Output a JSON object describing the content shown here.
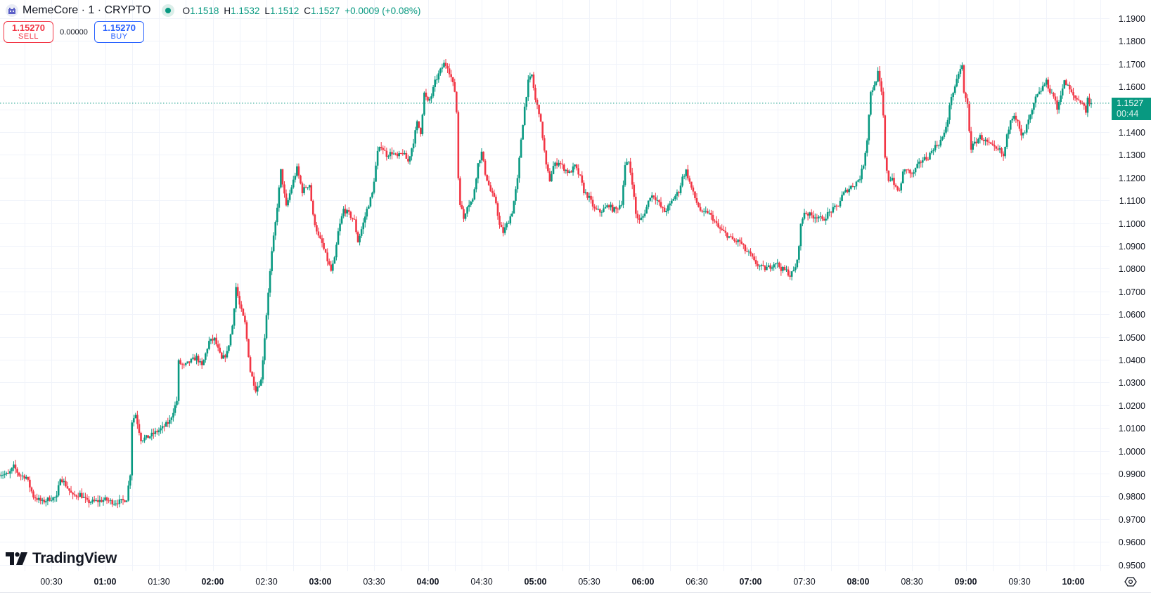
{
  "header": {
    "symbol_title": "MemeCore · 1 · CRYPTO",
    "symbol_icon": "building-icon",
    "market_status": "open",
    "ohlc": {
      "o_label": "O",
      "o_value": "1.1518",
      "h_label": "H",
      "h_value": "1.1532",
      "l_label": "L",
      "l_value": "1.1512",
      "c_label": "C",
      "c_value": "1.1527",
      "change": "+0.0009 (+0.08%)"
    }
  },
  "trade": {
    "sell_price": "1.15270",
    "sell_label": "SELL",
    "spread": "0.00000",
    "buy_price": "1.15270",
    "buy_label": "BUY"
  },
  "price_tag": {
    "price": "1.1527",
    "countdown": "00:44"
  },
  "branding": {
    "logo_text": "TradingView"
  },
  "colors": {
    "up": "#089981",
    "down": "#f23645",
    "grid": "#f0f3fa",
    "sell": "#f23645",
    "buy": "#2962ff"
  },
  "chart_data": {
    "type": "candlestick",
    "title": "MemeCore · 1 · CRYPTO",
    "interval_minutes": 1,
    "xlabel": "",
    "ylabel": "",
    "ylim": [
      0.95,
      1.19
    ],
    "y_ticks": [
      "1.1900",
      "1.1800",
      "1.1700",
      "1.1600",
      "1.1500",
      "1.1400",
      "1.1300",
      "1.1200",
      "1.1100",
      "1.1000",
      "1.0900",
      "1.0800",
      "1.0700",
      "1.0600",
      "1.0500",
      "1.0400",
      "1.0300",
      "1.0200",
      "1.0100",
      "1.0000",
      "0.9900",
      "0.9800",
      "0.9700",
      "0.9600",
      "0.9500"
    ],
    "x_ticks": [
      {
        "label": "00:30",
        "minute": 30,
        "major": false
      },
      {
        "label": "01:00",
        "minute": 60,
        "major": true
      },
      {
        "label": "01:30",
        "minute": 90,
        "major": false
      },
      {
        "label": "02:00",
        "minute": 120,
        "major": true
      },
      {
        "label": "02:30",
        "minute": 150,
        "major": false
      },
      {
        "label": "03:00",
        "minute": 180,
        "major": true
      },
      {
        "label": "03:30",
        "minute": 210,
        "major": false
      },
      {
        "label": "04:00",
        "minute": 240,
        "major": true
      },
      {
        "label": "04:30",
        "minute": 270,
        "major": false
      },
      {
        "label": "05:00",
        "minute": 300,
        "major": true
      },
      {
        "label": "05:30",
        "minute": 330,
        "major": false
      },
      {
        "label": "06:00",
        "minute": 360,
        "major": true
      },
      {
        "label": "06:30",
        "minute": 390,
        "major": false
      },
      {
        "label": "07:00",
        "minute": 420,
        "major": true
      },
      {
        "label": "07:30",
        "minute": 450,
        "major": false
      },
      {
        "label": "08:00",
        "minute": 480,
        "major": true
      },
      {
        "label": "08:30",
        "minute": 510,
        "major": false
      },
      {
        "label": "09:00",
        "minute": 540,
        "major": true
      },
      {
        "label": "09:30",
        "minute": 570,
        "major": false
      },
      {
        "label": "10:00",
        "minute": 600,
        "major": true
      }
    ],
    "last_price": 1.1527,
    "close_path": [
      [
        1,
        0.99
      ],
      [
        6,
        0.9895
      ],
      [
        9,
        0.993
      ],
      [
        12,
        0.9895
      ],
      [
        16,
        0.9885
      ],
      [
        20,
        0.98
      ],
      [
        25,
        0.9775
      ],
      [
        29,
        0.979
      ],
      [
        33,
        0.9795
      ],
      [
        35,
        0.9885
      ],
      [
        38,
        0.985
      ],
      [
        42,
        0.98
      ],
      [
        46,
        0.981
      ],
      [
        50,
        0.9775
      ],
      [
        55,
        0.9778
      ],
      [
        60,
        0.9785
      ],
      [
        65,
        0.9773
      ],
      [
        70,
        0.978
      ],
      [
        72,
        0.979
      ],
      [
        74,
        0.99
      ],
      [
        75,
        1.013
      ],
      [
        77,
        1.016
      ],
      [
        80,
        1.005
      ],
      [
        84,
        1.006
      ],
      [
        88,
        1.008
      ],
      [
        92,
        1.01
      ],
      [
        96,
        1.013
      ],
      [
        100,
        1.022
      ],
      [
        101,
        1.039
      ],
      [
        104,
        1.037
      ],
      [
        107,
        1.039
      ],
      [
        111,
        1.041
      ],
      [
        114,
        1.037
      ],
      [
        118,
        1.048
      ],
      [
        121,
        1.049
      ],
      [
        125,
        1.04
      ],
      [
        128,
        1.043
      ],
      [
        131,
        1.055
      ],
      [
        133,
        1.072
      ],
      [
        135,
        1.064
      ],
      [
        138,
        1.056
      ],
      [
        141,
        1.035
      ],
      [
        144,
        1.027
      ],
      [
        147,
        1.031
      ],
      [
        149,
        1.05
      ],
      [
        151,
        1.07
      ],
      [
        153,
        1.087
      ],
      [
        155,
        1.1
      ],
      [
        157,
        1.115
      ],
      [
        158,
        1.123
      ],
      [
        161,
        1.107
      ],
      [
        164,
        1.116
      ],
      [
        167,
        1.124
      ],
      [
        170,
        1.114
      ],
      [
        172,
        1.116
      ],
      [
        174,
        1.117
      ],
      [
        176,
        1.103
      ],
      [
        179,
        1.094
      ],
      [
        181,
        1.091
      ],
      [
        183,
        1.086
      ],
      [
        186,
        1.079
      ],
      [
        188,
        1.084
      ],
      [
        190,
        1.096
      ],
      [
        193,
        1.106
      ],
      [
        196,
        1.104
      ],
      [
        199,
        1.101
      ],
      [
        201,
        1.092
      ],
      [
        204,
        1.1
      ],
      [
        206,
        1.106
      ],
      [
        209,
        1.113
      ],
      [
        212,
        1.131
      ],
      [
        214,
        1.134
      ],
      [
        217,
        1.13
      ],
      [
        220,
        1.131
      ],
      [
        223,
        1.129
      ],
      [
        226,
        1.131
      ],
      [
        229,
        1.127
      ],
      [
        232,
        1.136
      ],
      [
        234,
        1.144
      ],
      [
        236,
        1.14
      ],
      [
        238,
        1.157
      ],
      [
        240,
        1.153
      ],
      [
        242,
        1.156
      ],
      [
        244,
        1.162
      ],
      [
        247,
        1.167
      ],
      [
        249,
        1.17
      ],
      [
        251,
        1.169
      ],
      [
        253,
        1.164
      ],
      [
        255,
        1.158
      ],
      [
        256,
        1.149
      ],
      [
        257,
        1.12
      ],
      [
        258,
        1.109
      ],
      [
        260,
        1.102
      ],
      [
        262,
        1.108
      ],
      [
        265,
        1.11
      ],
      [
        268,
        1.126
      ],
      [
        270,
        1.131
      ],
      [
        272,
        1.122
      ],
      [
        275,
        1.114
      ],
      [
        278,
        1.109
      ],
      [
        280,
        1.099
      ],
      [
        282,
        1.096
      ],
      [
        285,
        1.101
      ],
      [
        287,
        1.105
      ],
      [
        290,
        1.119
      ],
      [
        292,
        1.137
      ],
      [
        294,
        1.151
      ],
      [
        296,
        1.162
      ],
      [
        298,
        1.165
      ],
      [
        300,
        1.154
      ],
      [
        302,
        1.149
      ],
      [
        304,
        1.138
      ],
      [
        306,
        1.125
      ],
      [
        308,
        1.119
      ],
      [
        310,
        1.125
      ],
      [
        313,
        1.127
      ],
      [
        316,
        1.124
      ],
      [
        319,
        1.122
      ],
      [
        322,
        1.125
      ],
      [
        325,
        1.12
      ],
      [
        327,
        1.114
      ],
      [
        330,
        1.111
      ],
      [
        333,
        1.106
      ],
      [
        336,
        1.105
      ],
      [
        338,
        1.106
      ],
      [
        341,
        1.108
      ],
      [
        343,
        1.106
      ],
      [
        345,
        1.106
      ],
      [
        348,
        1.109
      ],
      [
        350,
        1.125
      ],
      [
        352,
        1.127
      ],
      [
        354,
        1.118
      ],
      [
        356,
        1.104
      ],
      [
        358,
        1.101
      ],
      [
        360,
        1.103
      ],
      [
        362,
        1.107
      ],
      [
        364,
        1.112
      ],
      [
        366,
        1.112
      ],
      [
        368,
        1.11
      ],
      [
        370,
        1.107
      ],
      [
        372,
        1.105
      ],
      [
        375,
        1.108
      ],
      [
        377,
        1.111
      ],
      [
        380,
        1.114
      ],
      [
        382,
        1.12
      ],
      [
        384,
        1.123
      ],
      [
        386,
        1.118
      ],
      [
        388,
        1.113
      ],
      [
        390,
        1.109
      ],
      [
        393,
        1.104
      ],
      [
        396,
        1.105
      ],
      [
        399,
        1.102
      ],
      [
        402,
        1.098
      ],
      [
        405,
        1.096
      ],
      [
        408,
        1.094
      ],
      [
        411,
        1.092
      ],
      [
        414,
        1.092
      ],
      [
        417,
        1.088
      ],
      [
        420,
        1.086
      ],
      [
        422,
        1.083
      ],
      [
        425,
        1.081
      ],
      [
        428,
        1.08
      ],
      [
        431,
        1.081
      ],
      [
        434,
        1.083
      ],
      [
        437,
        1.08
      ],
      [
        440,
        1.079
      ],
      [
        442,
        1.077
      ],
      [
        444,
        1.079
      ],
      [
        446,
        1.083
      ],
      [
        448,
        1.099
      ],
      [
        450,
        1.105
      ],
      [
        452,
        1.104
      ],
      [
        455,
        1.103
      ],
      [
        458,
        1.103
      ],
      [
        460,
        1.101
      ],
      [
        463,
        1.104
      ],
      [
        466,
        1.106
      ],
      [
        469,
        1.108
      ],
      [
        471,
        1.112
      ],
      [
        473,
        1.114
      ],
      [
        476,
        1.116
      ],
      [
        478,
        1.117
      ],
      [
        481,
        1.12
      ],
      [
        483,
        1.126
      ],
      [
        485,
        1.137
      ],
      [
        487,
        1.158
      ],
      [
        489,
        1.16
      ],
      [
        491,
        1.166
      ],
      [
        493,
        1.157
      ],
      [
        494,
        1.147
      ],
      [
        495,
        1.128
      ],
      [
        497,
        1.119
      ],
      [
        499,
        1.12
      ],
      [
        501,
        1.115
      ],
      [
        503,
        1.114
      ],
      [
        505,
        1.122
      ],
      [
        507,
        1.124
      ],
      [
        510,
        1.121
      ],
      [
        513,
        1.125
      ],
      [
        516,
        1.128
      ],
      [
        519,
        1.129
      ],
      [
        522,
        1.133
      ],
      [
        525,
        1.135
      ],
      [
        528,
        1.139
      ],
      [
        530,
        1.146
      ],
      [
        532,
        1.156
      ],
      [
        534,
        1.159
      ],
      [
        536,
        1.166
      ],
      [
        538,
        1.169
      ],
      [
        539,
        1.157
      ],
      [
        541,
        1.152
      ],
      [
        542,
        1.141
      ],
      [
        543,
        1.133
      ],
      [
        545,
        1.135
      ],
      [
        548,
        1.138
      ],
      [
        551,
        1.136
      ],
      [
        554,
        1.134
      ],
      [
        557,
        1.132
      ],
      [
        559,
        1.132
      ],
      [
        561,
        1.129
      ],
      [
        563,
        1.138
      ],
      [
        565,
        1.146
      ],
      [
        567,
        1.148
      ],
      [
        569,
        1.144
      ],
      [
        571,
        1.138
      ],
      [
        573,
        1.14
      ],
      [
        575,
        1.145
      ],
      [
        577,
        1.149
      ],
      [
        579,
        1.155
      ],
      [
        581,
        1.157
      ],
      [
        583,
        1.16
      ],
      [
        585,
        1.162
      ],
      [
        587,
        1.158
      ],
      [
        589,
        1.156
      ],
      [
        591,
        1.15
      ],
      [
        593,
        1.157
      ],
      [
        595,
        1.162
      ],
      [
        597,
        1.16
      ],
      [
        599,
        1.157
      ],
      [
        601,
        1.155
      ],
      [
        603,
        1.154
      ],
      [
        605,
        1.153
      ],
      [
        607,
        1.149
      ],
      [
        608,
        1.155
      ],
      [
        609,
        1.1518
      ],
      [
        610,
        1.1527
      ]
    ]
  }
}
